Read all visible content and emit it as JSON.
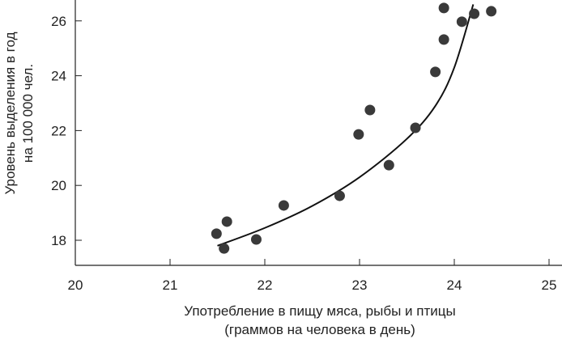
{
  "chart_data": {
    "type": "scatter",
    "title": "",
    "xlabel": [
      "Употребление в пищу мяса, рыбы и птицы",
      "(граммов на человека в день)"
    ],
    "ylabel": [
      "Уровень выделения в год",
      "на 100 000 чел."
    ],
    "xlim": [
      20,
      25.1
    ],
    "ylim": [
      17.1,
      26.8
    ],
    "xticks": [
      20,
      21,
      22,
      23,
      24,
      25
    ],
    "yticks": [
      18,
      20,
      22,
      24,
      26
    ],
    "grid": false,
    "points": [
      {
        "x": 21.49,
        "y": 18.24
      },
      {
        "x": 21.6,
        "y": 18.68
      },
      {
        "x": 21.57,
        "y": 17.7
      },
      {
        "x": 21.91,
        "y": 18.03
      },
      {
        "x": 22.2,
        "y": 19.27
      },
      {
        "x": 22.79,
        "y": 19.62
      },
      {
        "x": 22.99,
        "y": 21.86
      },
      {
        "x": 23.11,
        "y": 22.75
      },
      {
        "x": 23.31,
        "y": 20.74
      },
      {
        "x": 23.59,
        "y": 22.1
      },
      {
        "x": 23.8,
        "y": 24.14
      },
      {
        "x": 23.89,
        "y": 25.32
      },
      {
        "x": 23.89,
        "y": 26.47
      },
      {
        "x": 24.08,
        "y": 25.97
      },
      {
        "x": 24.21,
        "y": 26.26
      },
      {
        "x": 24.39,
        "y": 26.35
      }
    ],
    "trend": [
      {
        "x": 21.5,
        "y": 17.8
      },
      {
        "x": 22.0,
        "y": 18.45
      },
      {
        "x": 22.5,
        "y": 19.25
      },
      {
        "x": 23.0,
        "y": 20.3
      },
      {
        "x": 23.5,
        "y": 21.7
      },
      {
        "x": 23.8,
        "y": 22.9
      },
      {
        "x": 24.0,
        "y": 24.3
      },
      {
        "x": 24.2,
        "y": 26.6
      }
    ],
    "colors": {
      "point": "#3a3a3a",
      "line": "#111111",
      "axis": "#222222"
    }
  }
}
